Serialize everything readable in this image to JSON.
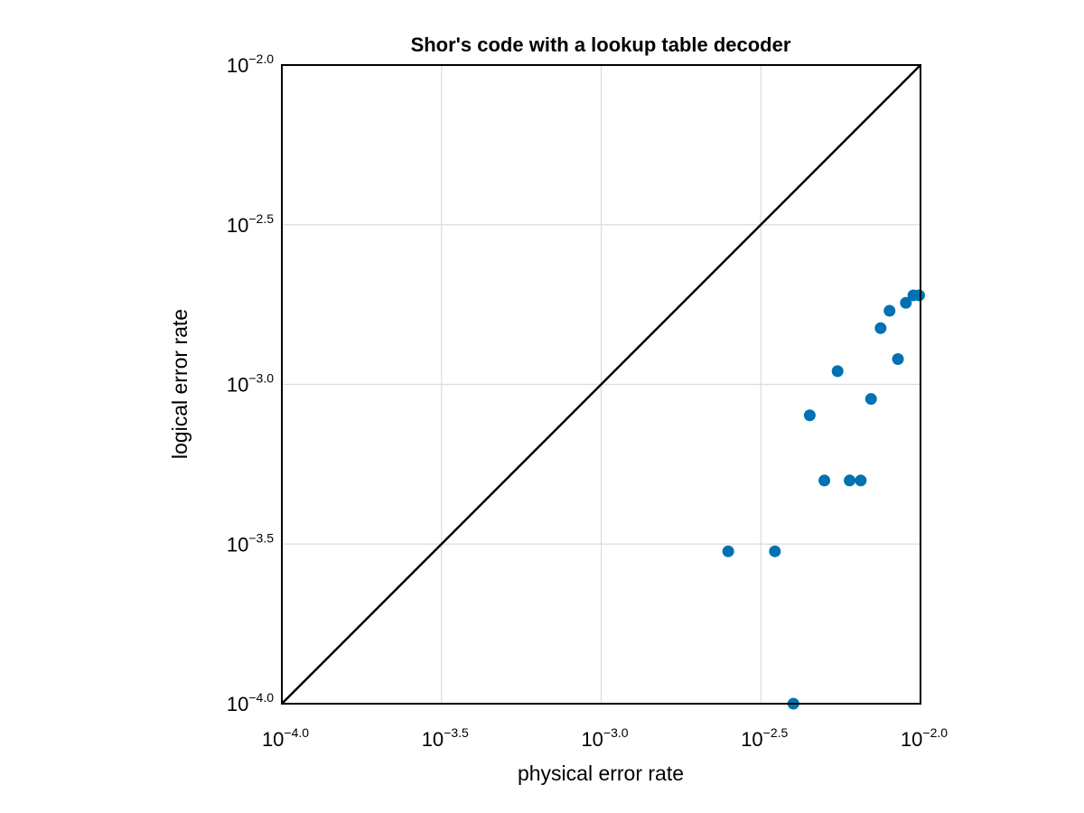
{
  "chart_data": {
    "type": "scatter",
    "title": "Shor's code with a lookup table decoder",
    "xlabel": "physical error rate",
    "ylabel": "logical error rate",
    "xscale": "log10",
    "yscale": "log10",
    "xlim": [
      0.0001,
      0.01
    ],
    "ylim": [
      0.0001,
      0.01
    ],
    "grid": true,
    "xticks": [
      {
        "base": "10",
        "exp": "−4.0",
        "value": -4
      },
      {
        "base": "10",
        "exp": "−3.5",
        "value": -3.5
      },
      {
        "base": "10",
        "exp": "−3.0",
        "value": -3
      },
      {
        "base": "10",
        "exp": "−2.5",
        "value": -2.5
      },
      {
        "base": "10",
        "exp": "−2.0",
        "value": -2
      }
    ],
    "yticks": [
      {
        "base": "10",
        "exp": "−4.0",
        "value": -4
      },
      {
        "base": "10",
        "exp": "−3.5",
        "value": -3.5
      },
      {
        "base": "10",
        "exp": "−3.0",
        "value": -3
      },
      {
        "base": "10",
        "exp": "−2.5",
        "value": -2.5
      },
      {
        "base": "10",
        "exp": "−2.0",
        "value": -2
      }
    ],
    "reference_line": "y = x",
    "marker_color": "#0072b2",
    "line_color": "#000000",
    "points": [
      {
        "x": 0.0025,
        "y": 0.0003
      },
      {
        "x": 0.0035,
        "y": 0.0003
      },
      {
        "x": 0.004,
        "y": 0.0001
      },
      {
        "x": 0.0045,
        "y": 0.0008
      },
      {
        "x": 0.005,
        "y": 0.0005
      },
      {
        "x": 0.0055,
        "y": 0.0011
      },
      {
        "x": 0.006,
        "y": 0.0005
      },
      {
        "x": 0.0065,
        "y": 0.0005
      },
      {
        "x": 0.007,
        "y": 0.0009
      },
      {
        "x": 0.0075,
        "y": 0.0015
      },
      {
        "x": 0.008,
        "y": 0.0017
      },
      {
        "x": 0.0085,
        "y": 0.0012
      },
      {
        "x": 0.009,
        "y": 0.0018
      },
      {
        "x": 0.0095,
        "y": 0.0019
      },
      {
        "x": 0.0099,
        "y": 0.0019
      }
    ]
  }
}
